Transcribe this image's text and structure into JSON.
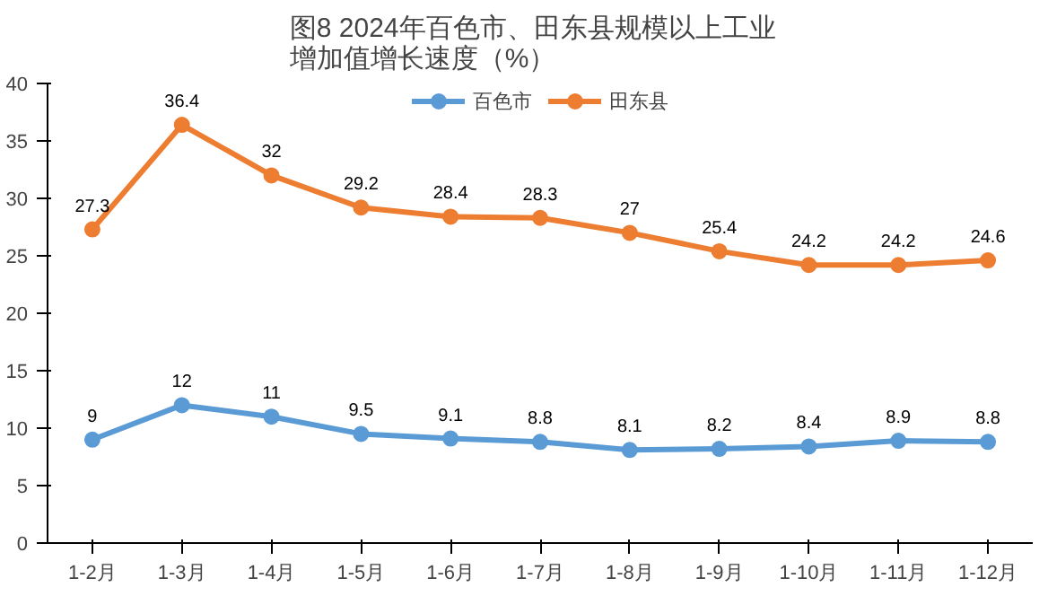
{
  "chart_data": {
    "type": "line",
    "title": "图8   2024年百色市、田东县规模以上工业增加值增长速度（%）",
    "categories": [
      "1-2月",
      "1-3月",
      "1-4月",
      "1-5月",
      "1-6月",
      "1-7月",
      "1-8月",
      "1-9月",
      "1-10月",
      "1-11月",
      "1-12月"
    ],
    "series": [
      {
        "name": "百色市",
        "color": "#5b9bd5",
        "values": [
          9,
          12,
          11,
          9.5,
          9.1,
          8.8,
          8.1,
          8.2,
          8.4,
          8.9,
          8.8
        ]
      },
      {
        "name": "田东县",
        "color": "#ed7d31",
        "values": [
          27.3,
          36.4,
          32,
          29.2,
          28.4,
          28.3,
          27,
          25.4,
          24.2,
          24.2,
          24.6
        ]
      }
    ],
    "ylim": [
      0,
      40
    ],
    "yticks": [
      0,
      5,
      10,
      15,
      20,
      25,
      30,
      35,
      40
    ],
    "grid": false,
    "legend": "top",
    "marker": "circle",
    "line_style": "solid",
    "data_labels": true
  }
}
